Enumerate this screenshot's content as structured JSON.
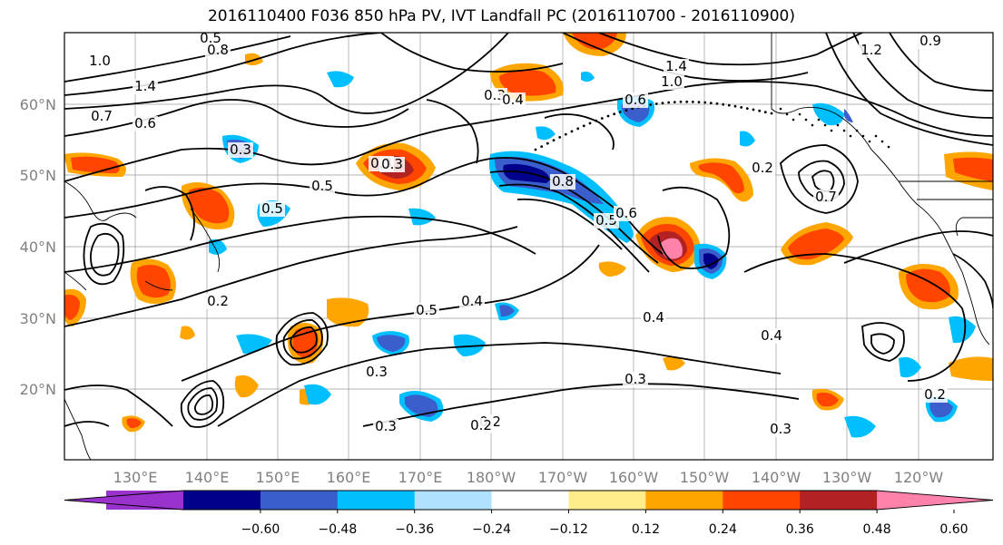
{
  "title": "2016110400 F036 850 hPa PV, IVT Landfall PC (2016110700 - 2016110900)",
  "lat_labels": [
    "60°N",
    "50°N",
    "40°N",
    "30°N",
    "20°N"
  ],
  "lon_labels": [
    "130°E",
    "140°E",
    "150°E",
    "160°E",
    "170°E",
    "180°W",
    "170°W",
    "160°W",
    "150°W",
    "140°W",
    "130°W",
    "120°W"
  ],
  "colorbar": {
    "colors": [
      "#9a32cd",
      "#00008b",
      "#3a5fcd",
      "#00bfff",
      "#b0e2ff",
      "#ffffff",
      "#ffec8b",
      "#ffa500",
      "#ff4500",
      "#b22222",
      "#ff82ab"
    ],
    "ticks": [
      "−0.60",
      "−0.48",
      "−0.36",
      "−0.24",
      "−0.12",
      "0.12",
      "0.24",
      "0.36",
      "0.48",
      "0.60"
    ]
  },
  "contour_labels": [
    "1.0",
    "1.4",
    "0.7",
    "0.6",
    "0.5",
    "0.8",
    "0.3",
    "0.5",
    "0.8",
    "0.3",
    "0.4",
    "0.6",
    "1.0",
    "1.4",
    "1.2",
    "0.9",
    "0.2",
    "0.7",
    "0.5",
    "0.6",
    "0.4",
    "0.3",
    "0.3",
    "0.2",
    "0.3",
    "0.2",
    "0.4",
    "0.3",
    "0.5",
    "0.4",
    "0.2",
    "0.3",
    "0.3",
    "0.5",
    "0.2"
  ]
}
